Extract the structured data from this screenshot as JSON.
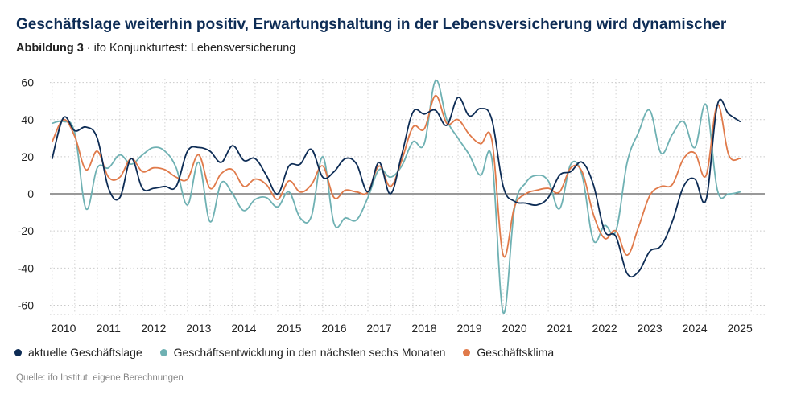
{
  "header": {
    "title": "Geschäftslage weiterhin positiv, Erwartungshaltung in der Lebensversicherung wird dynamischer",
    "figure_label": "Abbildung 3",
    "separator": " · ",
    "figure_caption": "ifo Konjunkturtest: Lebensversicherung"
  },
  "footer": {
    "source": "Quelle: ifo Institut, eigene Berechnungen"
  },
  "chart_data": {
    "type": "line",
    "title": "",
    "xlabel": "",
    "ylabel": "",
    "xlim": [
      2009.7,
      2025.55
    ],
    "ylim": [
      -65,
      62
    ],
    "y_ticks": [
      60,
      40,
      20,
      0,
      -20,
      -40,
      -60
    ],
    "y_tick_labels": [
      "60",
      "40",
      "20",
      "0",
      "-20",
      "-40",
      "-60"
    ],
    "x_ticks": [
      2010,
      2011,
      2012,
      2013,
      2014,
      2015,
      2016,
      2017,
      2018,
      2019,
      2020,
      2021,
      2022,
      2023,
      2024,
      2025
    ],
    "x_tick_labels": [
      "2010",
      "2011",
      "2012",
      "2013",
      "2014",
      "2015",
      "2016",
      "2017",
      "2018",
      "2019",
      "2020",
      "2021",
      "2022",
      "2023",
      "2024",
      "2025"
    ],
    "grid": true,
    "zero_line": true,
    "legend_position": "bottom-left",
    "series": [
      {
        "name": "aktuelle Geschäftslage",
        "color": "#0d2c55",
        "points": [
          [
            2009.75,
            19
          ],
          [
            2010.0,
            41
          ],
          [
            2010.25,
            34
          ],
          [
            2010.5,
            36
          ],
          [
            2010.75,
            30
          ],
          [
            2011.0,
            3
          ],
          [
            2011.25,
            -2
          ],
          [
            2011.5,
            19
          ],
          [
            2011.75,
            3
          ],
          [
            2012.0,
            3
          ],
          [
            2012.25,
            4
          ],
          [
            2012.5,
            4
          ],
          [
            2012.75,
            23
          ],
          [
            2013.0,
            25
          ],
          [
            2013.25,
            23
          ],
          [
            2013.5,
            17
          ],
          [
            2013.75,
            26
          ],
          [
            2014.0,
            18
          ],
          [
            2014.25,
            19
          ],
          [
            2014.5,
            10
          ],
          [
            2014.75,
            0
          ],
          [
            2015.0,
            15
          ],
          [
            2015.25,
            16
          ],
          [
            2015.5,
            24
          ],
          [
            2015.75,
            9
          ],
          [
            2016.0,
            12
          ],
          [
            2016.25,
            19
          ],
          [
            2016.5,
            16
          ],
          [
            2016.75,
            1
          ],
          [
            2017.0,
            17
          ],
          [
            2017.25,
            0
          ],
          [
            2017.5,
            21
          ],
          [
            2017.75,
            44
          ],
          [
            2018.0,
            43
          ],
          [
            2018.25,
            45
          ],
          [
            2018.5,
            37
          ],
          [
            2018.75,
            52
          ],
          [
            2019.0,
            42
          ],
          [
            2019.25,
            46
          ],
          [
            2019.5,
            40
          ],
          [
            2019.75,
            4
          ],
          [
            2020.0,
            -4
          ],
          [
            2020.25,
            -5
          ],
          [
            2020.5,
            -6
          ],
          [
            2020.75,
            -2
          ],
          [
            2021.0,
            10
          ],
          [
            2021.25,
            12
          ],
          [
            2021.5,
            17
          ],
          [
            2021.75,
            5
          ],
          [
            2022.0,
            -20
          ],
          [
            2022.25,
            -23
          ],
          [
            2022.5,
            -43
          ],
          [
            2022.75,
            -42
          ],
          [
            2023.0,
            -31
          ],
          [
            2023.25,
            -28
          ],
          [
            2023.5,
            -15
          ],
          [
            2023.75,
            4
          ],
          [
            2024.0,
            8
          ],
          [
            2024.25,
            -3
          ],
          [
            2024.5,
            48
          ],
          [
            2024.75,
            43
          ],
          [
            2025.0,
            39
          ]
        ]
      },
      {
        "name": "Geschäftsentwicklung in den nächsten sechs Monaten",
        "color": "#6fb1b3",
        "points": [
          [
            2009.75,
            38
          ],
          [
            2010.0,
            39
          ],
          [
            2010.25,
            33
          ],
          [
            2010.5,
            -8
          ],
          [
            2010.75,
            14
          ],
          [
            2011.0,
            14
          ],
          [
            2011.25,
            21
          ],
          [
            2011.5,
            16
          ],
          [
            2011.75,
            21
          ],
          [
            2012.0,
            25
          ],
          [
            2012.25,
            23
          ],
          [
            2012.5,
            14
          ],
          [
            2012.75,
            -6
          ],
          [
            2013.0,
            17
          ],
          [
            2013.25,
            -15
          ],
          [
            2013.5,
            6
          ],
          [
            2013.75,
            0
          ],
          [
            2014.0,
            -9
          ],
          [
            2014.25,
            -3
          ],
          [
            2014.5,
            -2
          ],
          [
            2014.75,
            -7
          ],
          [
            2015.0,
            1
          ],
          [
            2015.25,
            -13
          ],
          [
            2015.5,
            -12
          ],
          [
            2015.75,
            20
          ],
          [
            2016.0,
            -16
          ],
          [
            2016.25,
            -13
          ],
          [
            2016.5,
            -14
          ],
          [
            2016.75,
            -2
          ],
          [
            2017.0,
            13
          ],
          [
            2017.25,
            9
          ],
          [
            2017.5,
            15
          ],
          [
            2017.75,
            28
          ],
          [
            2018.0,
            27
          ],
          [
            2018.25,
            61
          ],
          [
            2018.5,
            40
          ],
          [
            2018.75,
            30
          ],
          [
            2019.0,
            21
          ],
          [
            2019.25,
            10
          ],
          [
            2019.5,
            19
          ],
          [
            2019.75,
            -64
          ],
          [
            2020.0,
            -8
          ],
          [
            2020.25,
            6
          ],
          [
            2020.5,
            10
          ],
          [
            2020.75,
            7
          ],
          [
            2021.0,
            -8
          ],
          [
            2021.25,
            16
          ],
          [
            2021.5,
            10
          ],
          [
            2021.75,
            -25
          ],
          [
            2022.0,
            -17
          ],
          [
            2022.25,
            -20
          ],
          [
            2022.5,
            17
          ],
          [
            2022.75,
            33
          ],
          [
            2023.0,
            45
          ],
          [
            2023.25,
            22
          ],
          [
            2023.5,
            32
          ],
          [
            2023.75,
            39
          ],
          [
            2024.0,
            25
          ],
          [
            2024.25,
            48
          ],
          [
            2024.5,
            2
          ],
          [
            2024.75,
            0
          ],
          [
            2025.0,
            1
          ]
        ]
      },
      {
        "name": "Geschäftsklima",
        "color": "#e07a4a",
        "points": [
          [
            2009.75,
            28
          ],
          [
            2010.0,
            40
          ],
          [
            2010.25,
            31
          ],
          [
            2010.5,
            13
          ],
          [
            2010.75,
            23
          ],
          [
            2011.0,
            9
          ],
          [
            2011.25,
            9
          ],
          [
            2011.5,
            19
          ],
          [
            2011.75,
            12
          ],
          [
            2012.0,
            14
          ],
          [
            2012.25,
            13
          ],
          [
            2012.5,
            9
          ],
          [
            2012.75,
            8
          ],
          [
            2013.0,
            21
          ],
          [
            2013.25,
            3
          ],
          [
            2013.5,
            11
          ],
          [
            2013.75,
            13
          ],
          [
            2014.0,
            4
          ],
          [
            2014.25,
            8
          ],
          [
            2014.5,
            5
          ],
          [
            2014.75,
            -3
          ],
          [
            2015.0,
            7
          ],
          [
            2015.25,
            1
          ],
          [
            2015.5,
            5
          ],
          [
            2015.75,
            15
          ],
          [
            2016.0,
            -2
          ],
          [
            2016.25,
            2
          ],
          [
            2016.5,
            1
          ],
          [
            2016.75,
            1
          ],
          [
            2017.0,
            15
          ],
          [
            2017.25,
            4
          ],
          [
            2017.5,
            18
          ],
          [
            2017.75,
            36
          ],
          [
            2018.0,
            35
          ],
          [
            2018.25,
            53
          ],
          [
            2018.5,
            38
          ],
          [
            2018.75,
            40
          ],
          [
            2019.0,
            32
          ],
          [
            2019.25,
            27
          ],
          [
            2019.5,
            29
          ],
          [
            2019.75,
            -33
          ],
          [
            2020.0,
            -7
          ],
          [
            2020.25,
            0
          ],
          [
            2020.5,
            2
          ],
          [
            2020.75,
            3
          ],
          [
            2021.0,
            1
          ],
          [
            2021.25,
            14
          ],
          [
            2021.5,
            12
          ],
          [
            2021.75,
            -11
          ],
          [
            2022.0,
            -24
          ],
          [
            2022.25,
            -20
          ],
          [
            2022.5,
            -33
          ],
          [
            2022.75,
            -18
          ],
          [
            2023.0,
            -1
          ],
          [
            2023.25,
            4
          ],
          [
            2023.5,
            5
          ],
          [
            2023.75,
            19
          ],
          [
            2024.0,
            22
          ],
          [
            2024.25,
            10
          ],
          [
            2024.5,
            48
          ],
          [
            2024.75,
            21
          ],
          [
            2025.0,
            19
          ]
        ]
      }
    ]
  }
}
